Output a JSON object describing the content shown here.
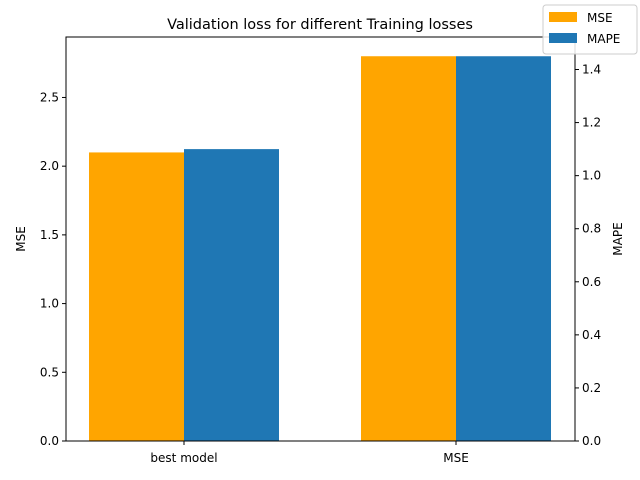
{
  "chart_data": {
    "type": "bar",
    "title": "Validation loss for different Training losses",
    "categories": [
      "best model",
      "MSE"
    ],
    "series": [
      {
        "name": "MSE",
        "axis": "left",
        "color": "#ffa500",
        "values": [
          2.1,
          2.8
        ]
      },
      {
        "name": "MAPE",
        "axis": "right",
        "color": "#1f77b4",
        "values": [
          1.1,
          1.45
        ]
      }
    ],
    "ylabel": "MSE",
    "y2label": "MAPE",
    "ylim": [
      0,
      2.94
    ],
    "y2lim": [
      0,
      1.5225
    ],
    "yticks": [
      "0.0",
      "0.5",
      "1.0",
      "1.5",
      "2.0",
      "2.5"
    ],
    "y2ticks": [
      "0.0",
      "0.2",
      "0.4",
      "0.6",
      "0.8",
      "1.0",
      "1.2",
      "1.4"
    ],
    "grid": false,
    "legend_position": "top-right"
  }
}
